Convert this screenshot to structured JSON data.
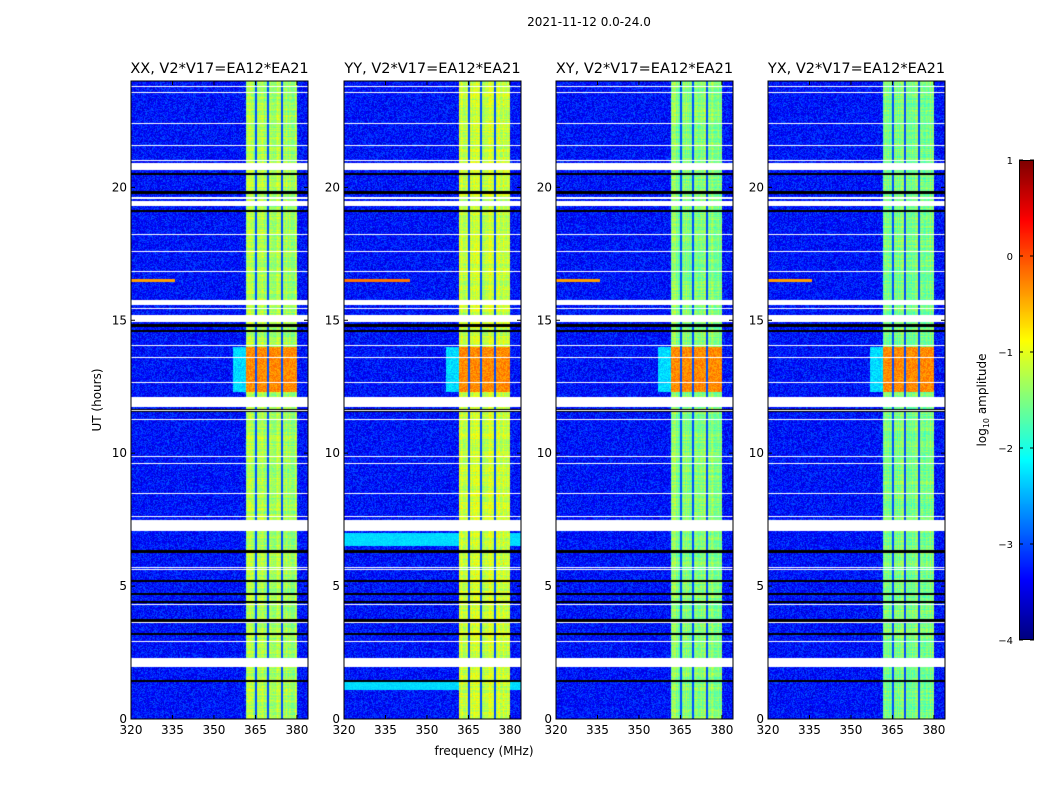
{
  "figure": {
    "suptitle": "2021-11-12 0.0-24.0",
    "ylabel": "UT (hours)",
    "xlabel": "frequency (MHz)"
  },
  "chart_data": {
    "type": "heatmap",
    "title": "2021-11-12 0.0-24.0",
    "xlabel": "frequency (MHz)",
    "ylabel": "UT (hours)",
    "xlim": [
      320,
      384
    ],
    "ylim": [
      0,
      24
    ],
    "xticks": [
      "320",
      "335",
      "350",
      "365",
      "380"
    ],
    "xtick_values": [
      320,
      335,
      350,
      365,
      380
    ],
    "yticks": [
      "0",
      "5",
      "10",
      "15",
      "20"
    ],
    "ytick_values": [
      0,
      5,
      10,
      15,
      20
    ],
    "colormap": "jet",
    "colorbar": {
      "label": "log10 amplitude",
      "label_main": "log",
      "label_sub": "10",
      "label_rest": " amplitude",
      "range": [
        -4,
        1
      ],
      "ticks": [
        "1",
        "0",
        "−1",
        "−2",
        "−3",
        "−4"
      ],
      "tick_values": [
        1,
        0,
        -1,
        -2,
        -3,
        -4
      ]
    },
    "panels": [
      {
        "title": "XX, V2*V17=EA12*EA21",
        "band_level": -1.3
      },
      {
        "title": "YY, V2*V17=EA12*EA21",
        "band_level": -1.1
      },
      {
        "title": "XY, V2*V17=EA12*EA21",
        "band_level": -1.45
      },
      {
        "title": "YX, V2*V17=EA12*EA21",
        "band_level": -1.5
      }
    ],
    "features": {
      "background_level": -3.3,
      "active_band_mhz": [
        361.5,
        380
      ],
      "band_dark_channels_mhz": [
        365.3,
        369.6,
        374.6
      ],
      "strong_interval_hours": [
        12.3,
        14.0
      ],
      "strong_level": -0.3,
      "flagged_intervals_hours": [
        [
          20.65,
          20.9
        ],
        [
          19.3,
          19.5
        ],
        [
          15.6,
          15.75
        ],
        [
          14.95,
          15.2
        ],
        [
          11.75,
          12.1
        ],
        [
          7.1,
          7.5
        ],
        [
          1.95,
          2.3
        ]
      ],
      "dark_rows_hours": [
        20.5,
        19.8,
        19.1,
        14.8,
        14.6,
        11.6,
        6.3,
        5.2,
        4.7,
        4.4,
        3.7,
        3.2,
        1.42
      ]
    }
  }
}
